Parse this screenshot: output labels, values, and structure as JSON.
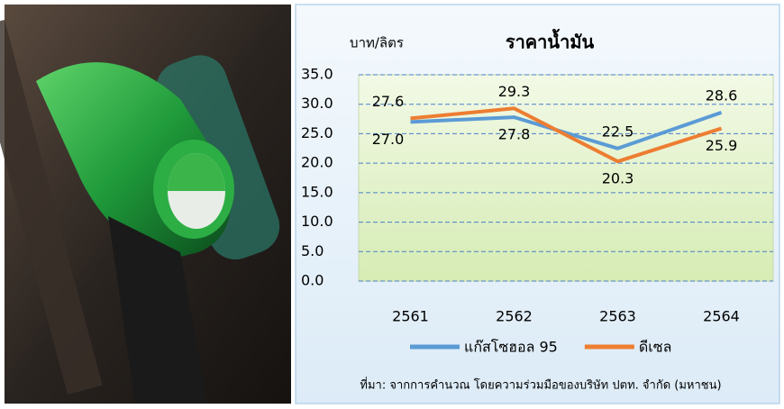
{
  "chart_data": {
    "type": "line",
    "title": "ราคาน้ำมัน",
    "y_label": "บาท/ลิตร",
    "categories": [
      "2561",
      "2562",
      "2563",
      "2564"
    ],
    "series": [
      {
        "name": "แก๊สโซฮอล 95",
        "color": "#5b9bd5",
        "values": [
          27.0,
          27.8,
          22.5,
          28.6
        ],
        "value_labels": [
          "27.0",
          "27.8",
          "22.5",
          "28.6"
        ]
      },
      {
        "name": "ดีเซล",
        "color": "#ed7d31",
        "values": [
          27.6,
          29.3,
          20.3,
          25.9
        ],
        "value_labels": [
          "27.6",
          "29.3",
          "20.3",
          "25.9"
        ]
      }
    ],
    "ylim": [
      0,
      35
    ],
    "yticks": [
      {
        "value": 0,
        "label": "0.0"
      },
      {
        "value": 5,
        "label": "5.0"
      },
      {
        "value": 10,
        "label": "10.0"
      },
      {
        "value": 15,
        "label": "15.0"
      },
      {
        "value": 20,
        "label": "20.0"
      },
      {
        "value": 25,
        "label": "25.0"
      },
      {
        "value": 30,
        "label": "30.0"
      },
      {
        "value": 35,
        "label": "35.0"
      }
    ],
    "grid": true,
    "source": "ที่มา: จากการคำนวณ โดยความร่วมมือของบริษัท ปตท. จำกัด (มหาชน)"
  }
}
